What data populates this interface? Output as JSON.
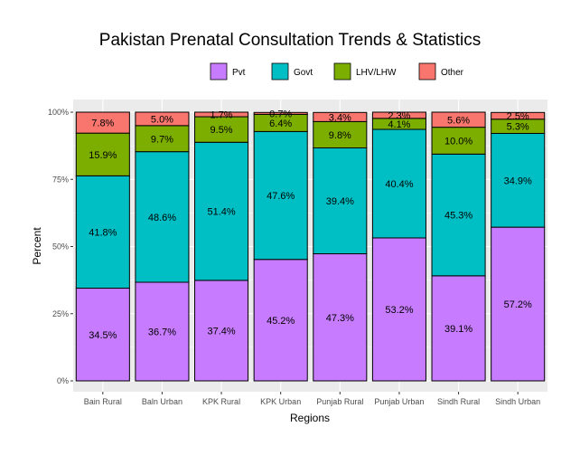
{
  "chart_data": {
    "type": "bar",
    "stacked": true,
    "title": "Pakistan Prenatal Consultation Trends & Statistics",
    "xlabel": "Regions",
    "ylabel": "Percent",
    "ylim": [
      0,
      100
    ],
    "yticks": [
      "0%",
      "25%",
      "50%",
      "75%",
      "100%"
    ],
    "ytick_values": [
      0,
      25,
      50,
      75,
      100
    ],
    "legend_position": "top",
    "grid": true,
    "categories": [
      "Bain Rural",
      "Baln Urban",
      "KPK Rural",
      "KPK Urban",
      "Punjab Rural",
      "Punjab Urban",
      "Sindh Rural",
      "Sindh Urban"
    ],
    "series": [
      {
        "name": "Pvt",
        "color": "#c77cff",
        "values": [
          34.5,
          36.7,
          37.4,
          45.2,
          47.3,
          53.2,
          39.1,
          57.2
        ],
        "labels": [
          "34.5%",
          "36.7%",
          "37.4%",
          "45.2%",
          "47.3%",
          "53.2%",
          "39.1%",
          "57.2%"
        ]
      },
      {
        "name": "Govt",
        "color": "#00bfc4",
        "values": [
          41.8,
          48.6,
          51.4,
          47.6,
          39.4,
          40.4,
          45.3,
          34.9
        ],
        "labels": [
          "41.8%",
          "48.6%",
          "51.4%",
          "47.6%",
          "39.4%",
          "40.4%",
          "45.3%",
          "34.9%"
        ]
      },
      {
        "name": "LHV/LHW",
        "color": "#7cae00",
        "values": [
          15.9,
          9.7,
          9.5,
          6.4,
          9.8,
          4.1,
          10.0,
          5.3
        ],
        "labels": [
          "15.9%",
          "9.7%",
          "9.5%",
          "6.4%",
          "9.8%",
          "4.1%",
          "10.0%",
          "5.3%"
        ]
      },
      {
        "name": "Other",
        "color": "#f8766d",
        "values": [
          7.8,
          5.0,
          1.7,
          0.7,
          3.4,
          2.3,
          5.6,
          2.5
        ],
        "labels": [
          "7.8%",
          "5.0%",
          "1.7%",
          "0.7%",
          "3.4%",
          "2.3%",
          "5.6%",
          "2.5%"
        ]
      }
    ]
  },
  "colors": {
    "panel_background": "#ebebeb",
    "grid_major": "#ffffff",
    "bar_outline": "#000000"
  }
}
